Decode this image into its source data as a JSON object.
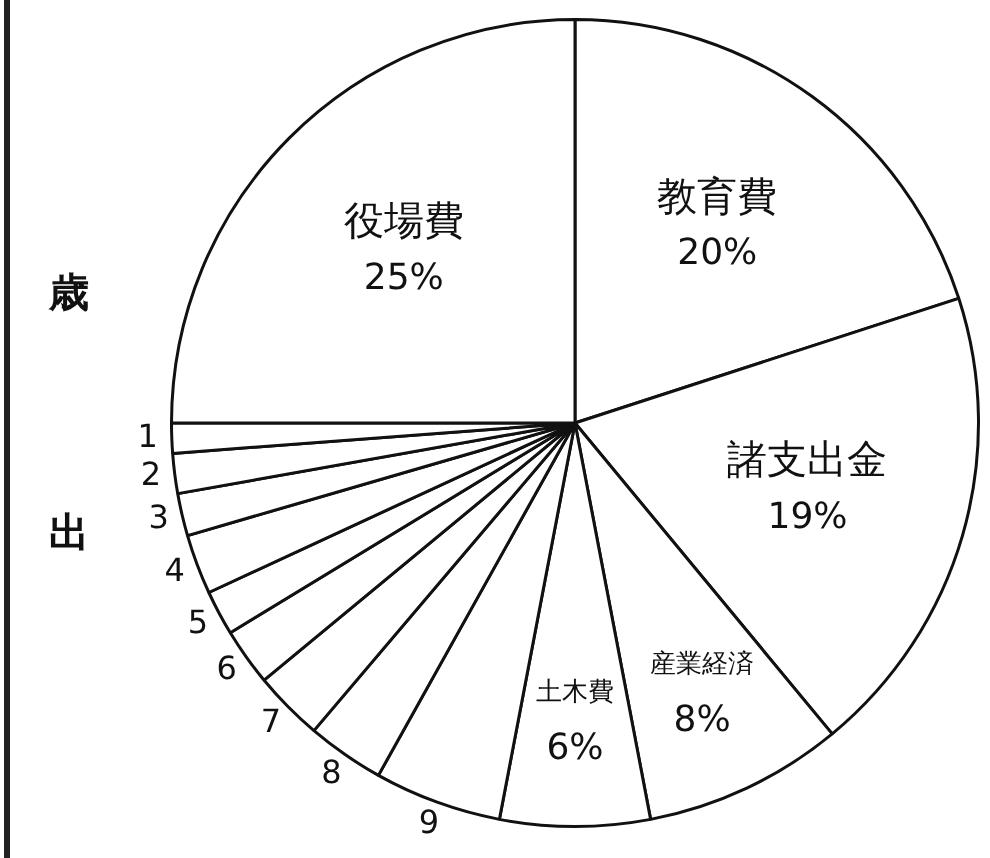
{
  "chart_data": {
    "type": "pie",
    "title": "歳出",
    "categories": [
      "教育費",
      "諸支出金",
      "産業経済",
      "土木費",
      "9",
      "8",
      "7",
      "6",
      "5",
      "4",
      "3",
      "2",
      "1",
      "役場費"
    ],
    "values": [
      20,
      19,
      8,
      6,
      5.1,
      3.1,
      2.8,
      2.3,
      1.8,
      2.4,
      1.7,
      1.6,
      1.2,
      25
    ],
    "value_labels": [
      "20%",
      "19%",
      "8%",
      "6%",
      null,
      null,
      null,
      null,
      null,
      null,
      null,
      null,
      null,
      "25%"
    ],
    "colors": [
      "#ffffff",
      "#ffffff",
      "#ffffff",
      "#ffffff",
      "#ffffff",
      "#ffffff",
      "#ffffff",
      "#ffffff",
      "#ffffff",
      "#ffffff",
      "#ffffff",
      "#ffffff",
      "#ffffff",
      "#ffffff"
    ],
    "legend": false
  }
}
